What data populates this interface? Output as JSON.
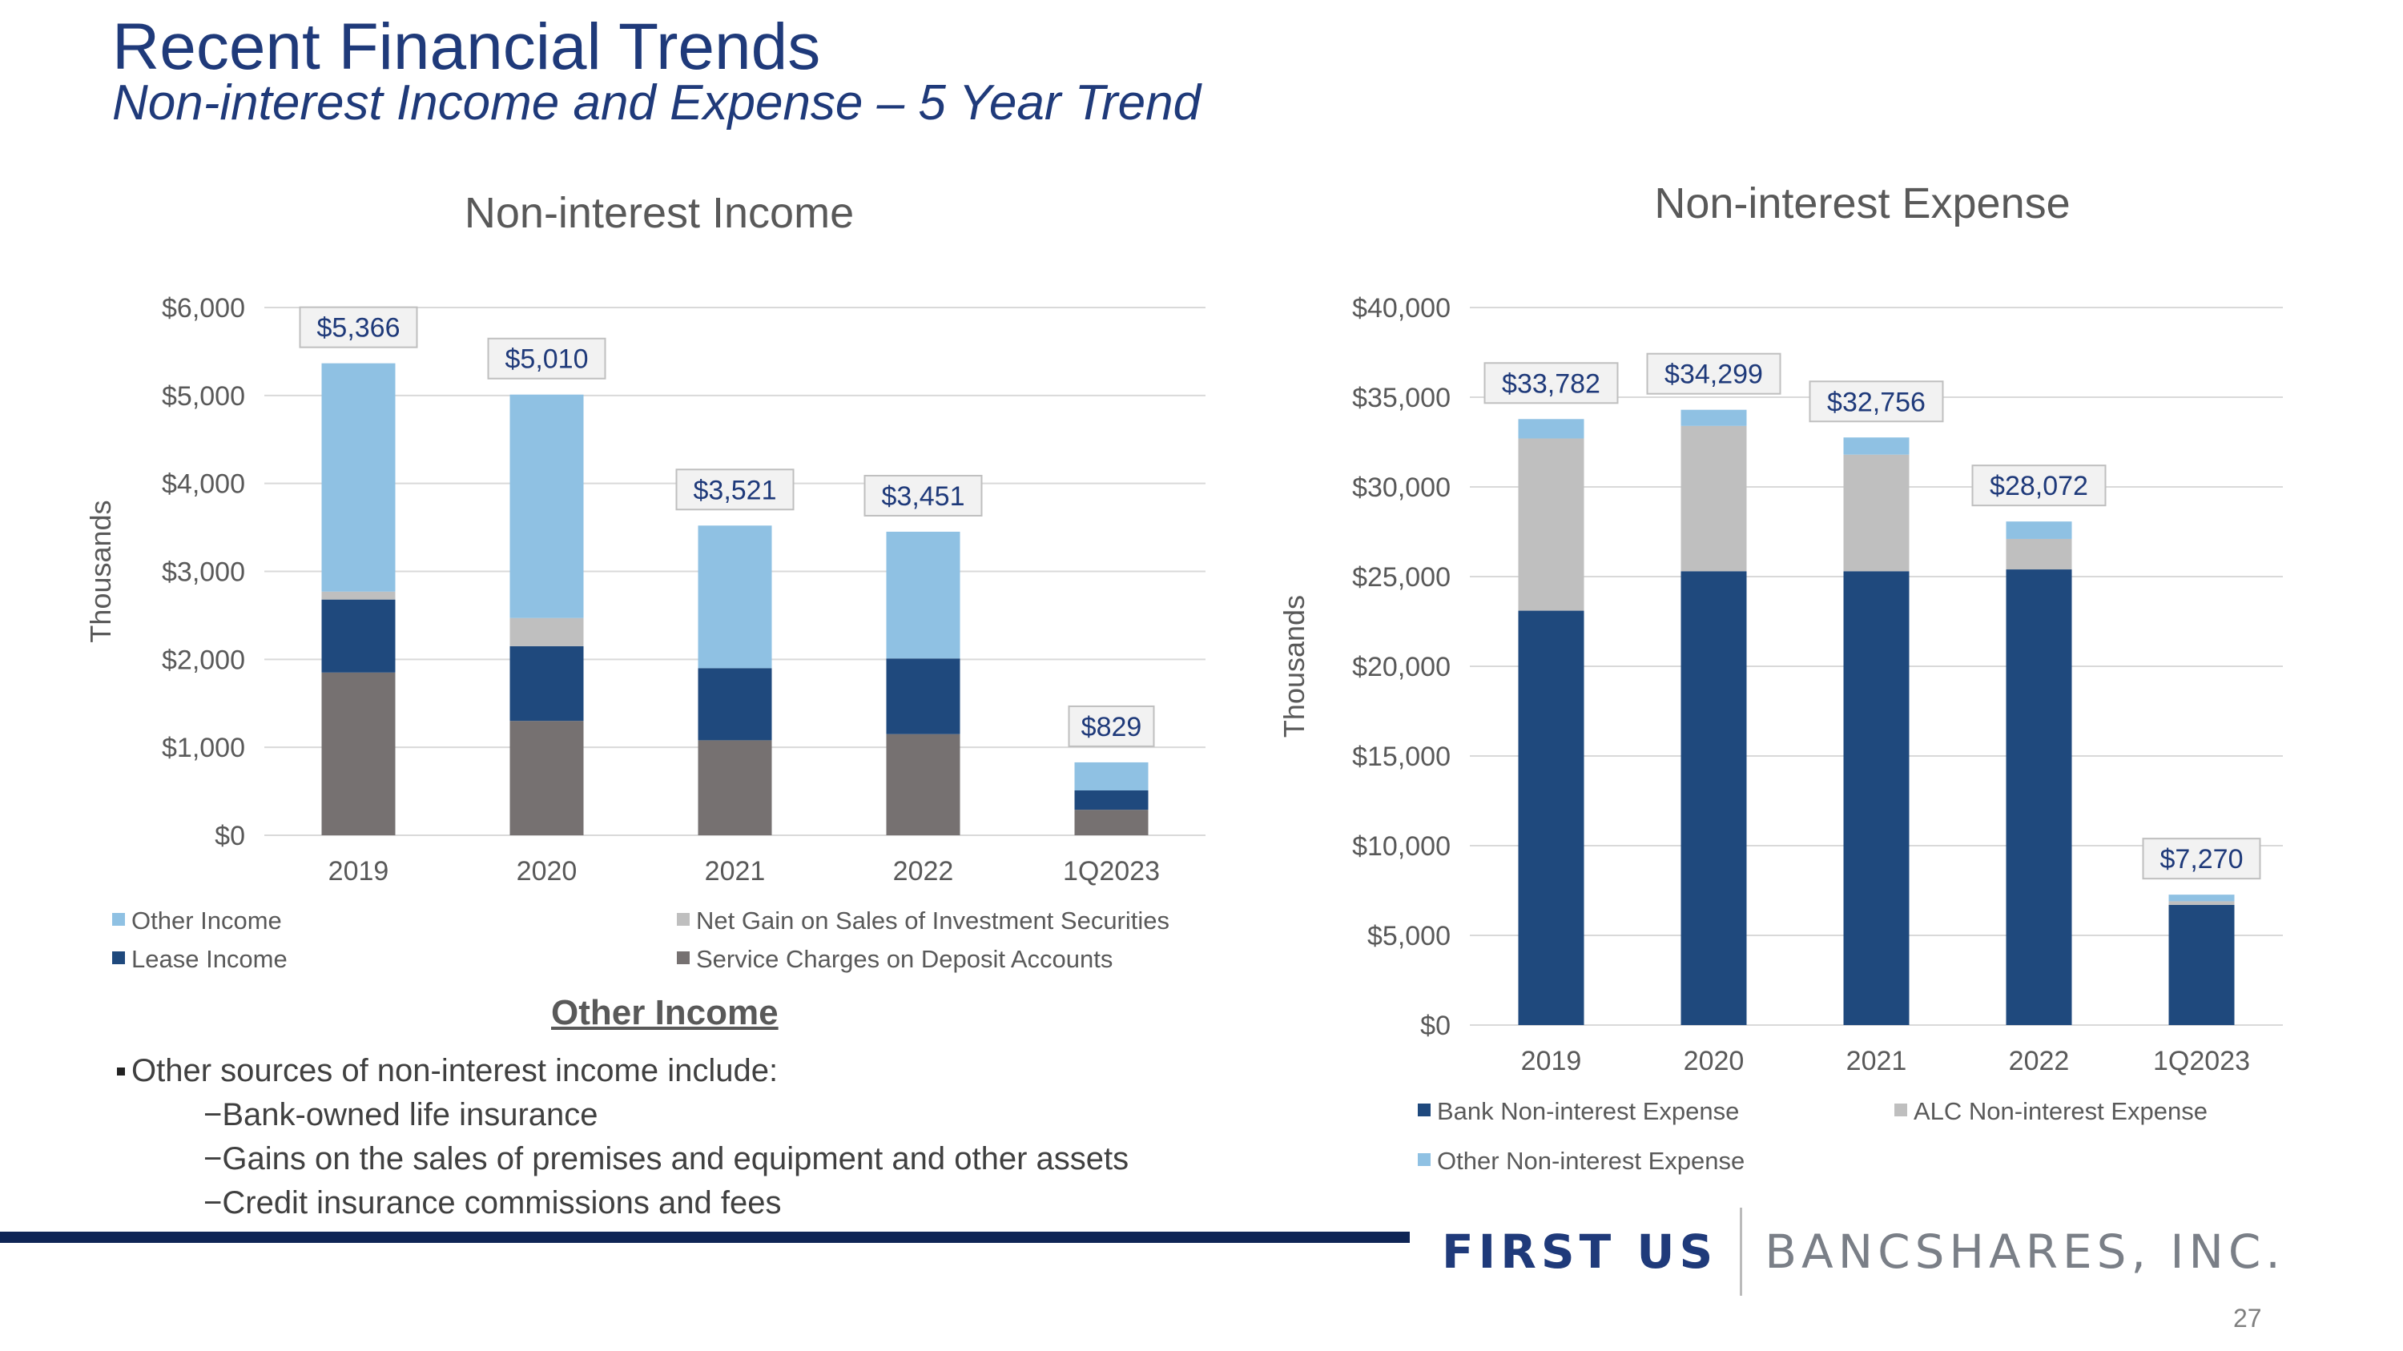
{
  "header": {
    "title": "Recent Financial Trends",
    "subtitle": "Non-interest Income and Expense – 5 Year Trend"
  },
  "chart_data": [
    {
      "type": "bar",
      "stacked": true,
      "title": "Non-interest Income",
      "ylabel": "Thousands",
      "xlabel": "",
      "categories": [
        "2019",
        "2020",
        "2021",
        "2022",
        "1Q2023"
      ],
      "ylim": [
        0,
        6000
      ],
      "yticks": [
        "$0",
        "$1,000",
        "$2,000",
        "$3,000",
        "$4,000",
        "$5,000",
        "$6,000"
      ],
      "gridlines": true,
      "legend_position": "bottom",
      "series": [
        {
          "name": "Service Charges on Deposit Accounts",
          "color": "#767171",
          "values": [
            1850,
            1300,
            1080,
            1150,
            290
          ]
        },
        {
          "name": "Lease Income",
          "color": "#1f497d",
          "values": [
            830,
            850,
            820,
            860,
            220
          ]
        },
        {
          "name": "Net Gain on Sales of Investment Securities",
          "color": "#bfbfbf",
          "values": [
            90,
            320,
            0,
            0,
            0
          ]
        },
        {
          "name": "Other Income",
          "color": "#8fc1e3",
          "values": [
            2596,
            2540,
            1621,
            1441,
            319
          ]
        }
      ],
      "totals": [
        "$5,366",
        "$5,010",
        "$3,521",
        "$3,451",
        "$829"
      ],
      "legend_order": [
        "Other Income",
        "Net Gain on Sales of Investment Securities",
        "Lease Income",
        "Service Charges on Deposit Accounts"
      ]
    },
    {
      "type": "bar",
      "stacked": true,
      "title": "Non-interest Expense",
      "ylabel": "Thousands",
      "xlabel": "",
      "categories": [
        "2019",
        "2020",
        "2021",
        "2022",
        "1Q2023"
      ],
      "ylim": [
        0,
        40000
      ],
      "yticks": [
        "$0",
        "$5,000",
        "$10,000",
        "$15,000",
        "$20,000",
        "$25,000",
        "$30,000",
        "$35,000",
        "$40,000"
      ],
      "gridlines": true,
      "legend_position": "bottom",
      "series": [
        {
          "name": "Bank Non-interest Expense",
          "color": "#1f497d",
          "values": [
            23100,
            25300,
            25300,
            25400,
            6700
          ]
        },
        {
          "name": "ALC Non-interest Expense",
          "color": "#bfbfbf",
          "values": [
            9600,
            8100,
            6500,
            1700,
            200
          ]
        },
        {
          "name": "Other Non-interest Expense",
          "color": "#8fc1e3",
          "values": [
            1082,
            899,
            956,
            972,
            370
          ]
        }
      ],
      "totals": [
        "$33,782",
        "$34,299",
        "$32,756",
        "$28,072",
        "$7,270"
      ],
      "legend_order": [
        "Bank Non-interest Expense",
        "ALC Non-interest Expense",
        "Other Non-interest Expense"
      ]
    }
  ],
  "notes": {
    "heading": "Other Income",
    "intro": "Other sources of non-interest income include:",
    "items": [
      "−Bank-owned life insurance",
      "−Gains on the sales of premises and equipment and other assets",
      "−Credit insurance commissions and fees"
    ]
  },
  "footer": {
    "logo_strong": "FIRST US",
    "logo_light": "BANCSHARES, INC.",
    "page_number": "27"
  }
}
